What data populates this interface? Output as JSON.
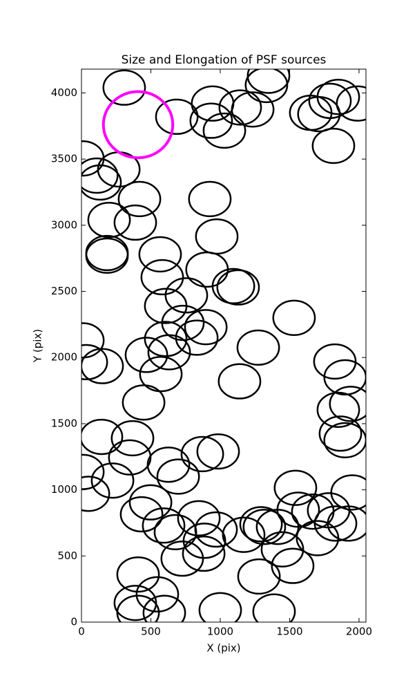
{
  "chart_data": {
    "type": "ellipse",
    "title": "Size and Elongation of PSF sources",
    "x_label": "X (pix)",
    "y_label": "Y (pix)",
    "xlim": [
      0,
      2050
    ],
    "ylim": [
      0,
      4180
    ],
    "xticks": [
      0,
      500,
      1000,
      1500,
      2000
    ],
    "yticks": [
      0,
      500,
      1000,
      1500,
      2000,
      2500,
      3000,
      3500,
      4000
    ],
    "series": [
      {
        "color": "#000000",
        "x": [
          308,
          687,
          945,
          935,
          1030,
          1144,
          1234,
          1333,
          1348,
          1652,
          1711,
          1791,
          1851,
          1990,
          1816,
          10,
          110,
          134,
          269,
          418,
          199,
          388,
          184,
          184,
          925,
          975,
          567,
          582,
          905,
          1095,
          1129,
          756,
          607,
          10,
          896,
          731,
          831,
          607,
          632,
          468,
          572,
          35,
          149,
          1274,
          1139,
          1532,
          1826,
          1900,
          1940,
          1851,
          1866,
          1900,
          448,
          144,
          368,
          348,
          10,
          224,
          50,
          627,
          697,
          871,
          985,
          498,
          433,
          592,
          677,
          726,
          846,
          886,
          970,
          881,
          1169,
          1294,
          1318,
          1279,
          1448,
          1522,
          1542,
          1562,
          1667,
          1781,
          1831,
          1701,
          1925,
          1950,
          408,
          388,
          408,
          547,
          597,
          1000,
          1388,
          1413
        ],
        "y": [
          4040,
          3820,
          3920,
          3790,
          3715,
          3890,
          3875,
          4060,
          4130,
          3850,
          3840,
          3940,
          3970,
          3920,
          3600,
          3505,
          3375,
          3323,
          3422,
          3198,
          3040,
          3020,
          2790,
          2770,
          3198,
          2915,
          2780,
          2607,
          2665,
          2540,
          2530,
          2470,
          2390,
          2130,
          2230,
          2262,
          2150,
          2140,
          2040,
          2020,
          1875,
          1965,
          1935,
          2075,
          1820,
          2300,
          1970,
          1850,
          1650,
          1605,
          1425,
          1375,
          1660,
          1400,
          1390,
          1245,
          1135,
          1070,
          970,
          1190,
          1100,
          1270,
          1290,
          905,
          815,
          730,
          680,
          480,
          785,
          615,
          700,
          517,
          660,
          740,
          720,
          345,
          550,
          425,
          1015,
          850,
          835,
          845,
          745,
          635,
          745,
          980,
          360,
          145,
          70,
          210,
          70,
          90,
          80,
          720
        ],
        "widths": [
          300,
          300,
          300,
          300,
          300,
          300,
          300,
          300,
          300,
          300,
          300,
          300,
          300,
          300,
          300,
          300,
          300,
          300,
          300,
          300,
          300,
          300,
          300,
          300,
          300,
          300,
          300,
          300,
          300,
          300,
          300,
          300,
          300,
          300,
          300,
          300,
          300,
          300,
          300,
          300,
          300,
          300,
          300,
          300,
          300,
          300,
          300,
          300,
          300,
          300,
          300,
          300,
          300,
          300,
          300,
          300,
          300,
          300,
          300,
          300,
          300,
          300,
          300,
          300,
          300,
          300,
          300,
          300,
          300,
          300,
          300,
          300,
          300,
          300,
          300,
          300,
          300,
          300,
          300,
          300,
          300,
          300,
          300,
          300,
          300,
          300,
          300,
          300,
          300,
          300,
          300,
          300,
          300,
          300
        ],
        "heights": [
          260,
          260,
          260,
          260,
          260,
          260,
          260,
          260,
          260,
          260,
          260,
          260,
          260,
          260,
          260,
          260,
          260,
          260,
          260,
          260,
          260,
          260,
          260,
          260,
          260,
          260,
          260,
          260,
          260,
          260,
          260,
          260,
          260,
          260,
          260,
          260,
          260,
          260,
          260,
          260,
          260,
          260,
          260,
          260,
          260,
          260,
          260,
          260,
          260,
          260,
          260,
          260,
          260,
          260,
          260,
          260,
          260,
          260,
          260,
          260,
          260,
          260,
          260,
          260,
          260,
          260,
          260,
          260,
          260,
          260,
          260,
          260,
          260,
          260,
          260,
          260,
          260,
          260,
          260,
          260,
          260,
          260,
          260,
          260,
          260,
          260,
          260,
          260,
          260,
          260,
          260,
          260,
          260,
          260
        ]
      },
      {
        "color": "#ff00ff",
        "x": [
          408
        ],
        "y": [
          3760
        ],
        "widths": [
          500
        ],
        "heights": [
          500
        ]
      }
    ]
  }
}
